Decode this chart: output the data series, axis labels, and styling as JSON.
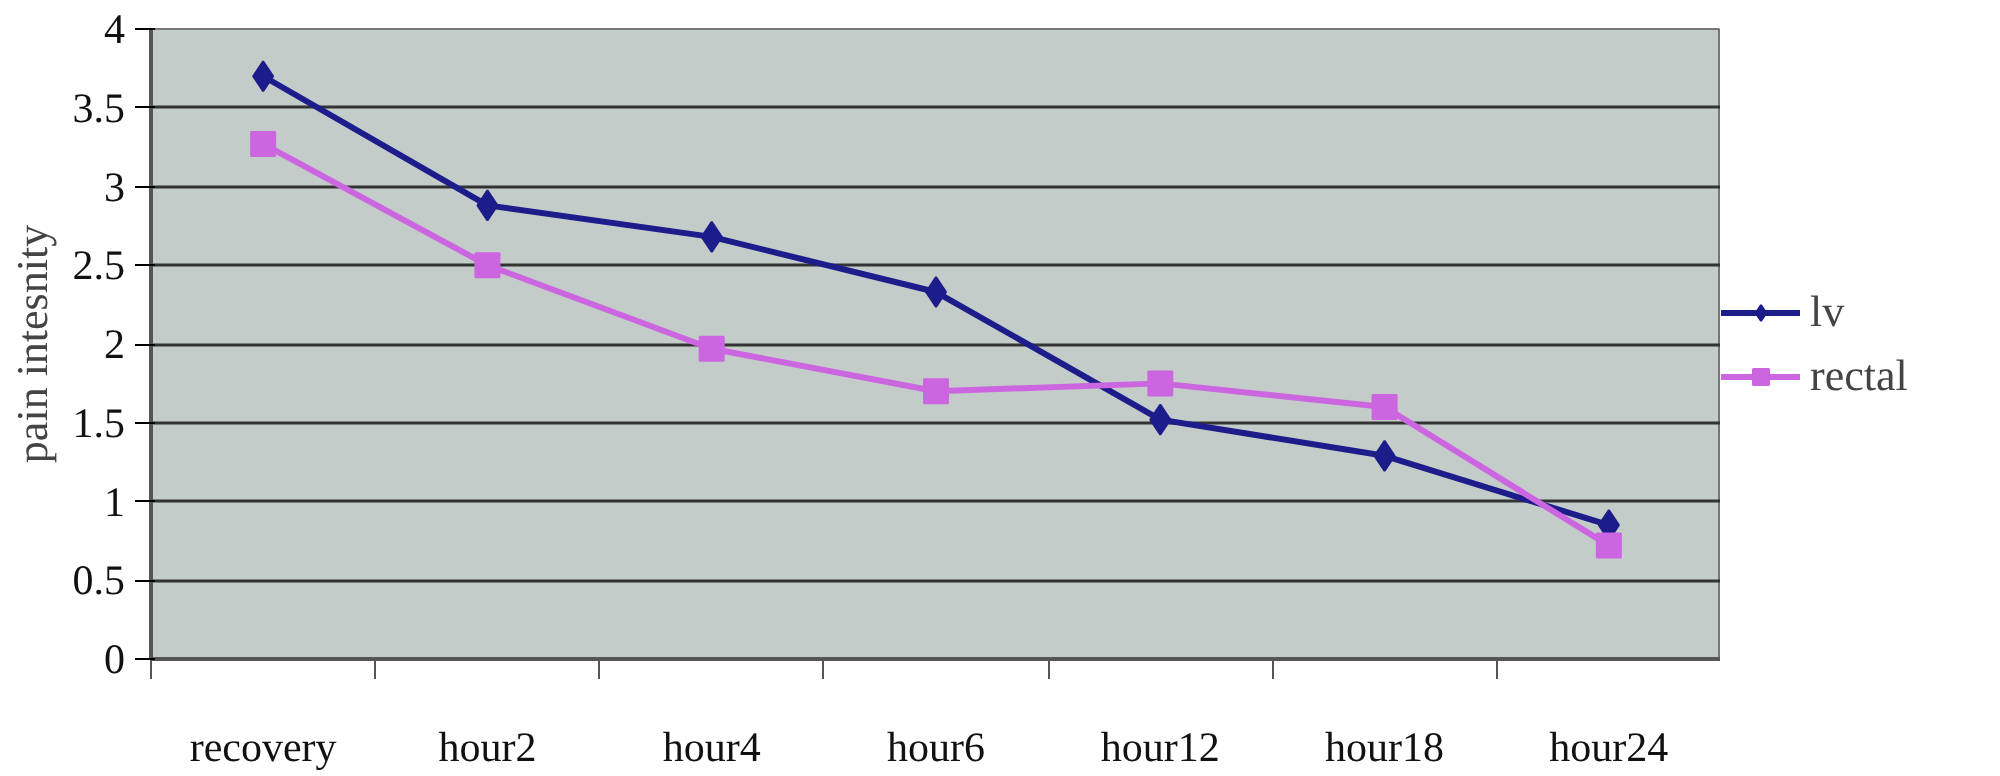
{
  "chart_data": {
    "type": "line",
    "ylabel": "pain intesnity",
    "categories": [
      "recovery",
      "hour2",
      "hour4",
      "hour6",
      "hour12",
      "hour18",
      "hour24"
    ],
    "series": [
      {
        "name": "lv",
        "color": "#1c1c8a",
        "marker": "diamond",
        "values": [
          3.7,
          2.88,
          2.68,
          2.33,
          1.52,
          1.29,
          0.85
        ]
      },
      {
        "name": "rectal",
        "color": "#cc66e0",
        "marker": "square",
        "values": [
          3.27,
          2.5,
          1.97,
          1.7,
          1.75,
          1.6,
          0.72
        ]
      }
    ],
    "ylim": [
      0,
      4
    ],
    "yticks": [
      0,
      0.5,
      1,
      1.5,
      2,
      2.5,
      3,
      3.5,
      4
    ],
    "grid": "y",
    "legend": "right"
  }
}
